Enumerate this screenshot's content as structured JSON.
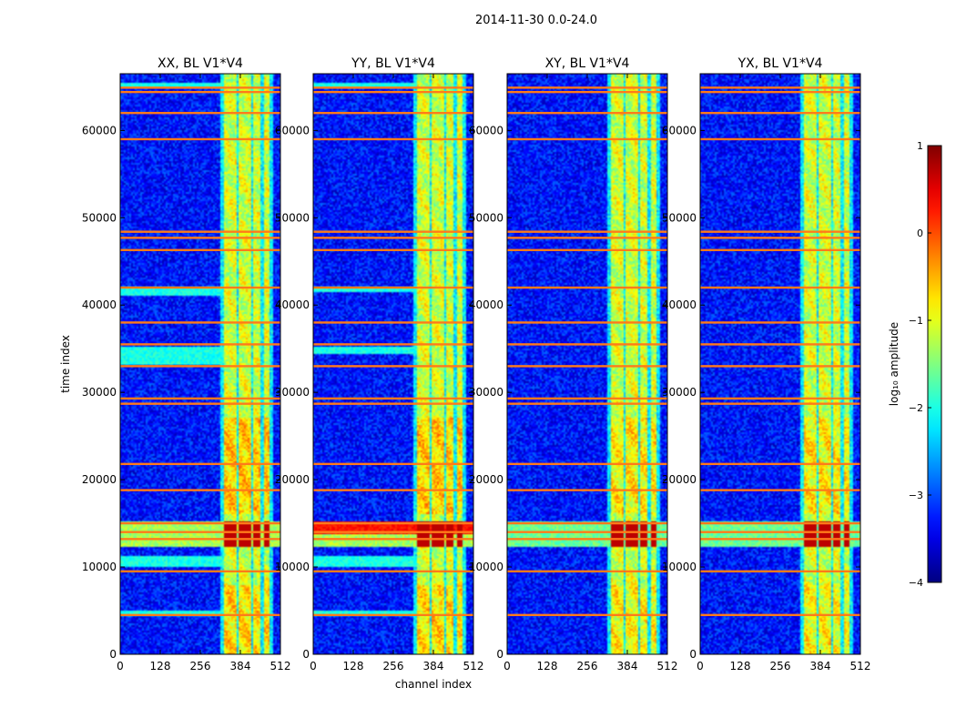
{
  "figure_title": "2014-11-30 0.0-24.0",
  "chart_data": {
    "type": "heatmap",
    "suptitle": "2014-11-30 0.0-24.0",
    "xlabel": "channel index",
    "ylabel": "time index",
    "xlim": [
      0,
      512
    ],
    "ylim": [
      0,
      66500
    ],
    "x_ticks": [
      0,
      128,
      256,
      384,
      512
    ],
    "x_tick_labels": [
      "0",
      "128",
      "256",
      "384",
      "512"
    ],
    "y_ticks": [
      0,
      10000,
      20000,
      30000,
      40000,
      50000,
      60000
    ],
    "y_tick_labels": [
      "0",
      "10000",
      "20000",
      "30000",
      "40000",
      "50000",
      "60000"
    ],
    "panels": [
      {
        "title": "XX, BL V1*V4",
        "flare_strength": 1.0,
        "left_bands": [
          [
            4300,
            5000
          ],
          [
            10000,
            11200
          ],
          [
            33200,
            35200
          ],
          [
            41000,
            42200
          ],
          [
            64800,
            65500
          ]
        ]
      },
      {
        "title": "YY, BL V1*V4",
        "flare_strength": 1.0,
        "left_bands": [
          [
            4300,
            5000
          ],
          [
            10000,
            11200
          ],
          [
            34500,
            35200
          ],
          [
            41500,
            42200
          ],
          [
            64800,
            65500
          ]
        ]
      },
      {
        "title": "XY, BL V1*V4",
        "flare_strength": 0.6,
        "left_bands": []
      },
      {
        "title": "YX, BL V1*V4",
        "flare_strength": 0.6,
        "left_bands": []
      }
    ],
    "rfi_channel_bands": [
      [
        332,
        372
      ],
      [
        380,
        416
      ],
      [
        422,
        450
      ],
      [
        458,
        478
      ]
    ],
    "rfi_flare_rows": [
      12200,
      15200
    ],
    "flagged_time_rows": [
      4500,
      9500,
      13200,
      14000,
      15000,
      18800,
      21800,
      28700,
      29300,
      33000,
      35500,
      38000,
      42000,
      46300,
      47700,
      48400,
      59000,
      62000,
      64400,
      64900
    ],
    "colorbar": {
      "label": "log₁₀ amplitude",
      "range": [
        -4,
        1
      ],
      "ticks": [
        1,
        0,
        -1,
        -2,
        -3,
        -4
      ],
      "tick_labels": [
        "1",
        "0",
        "−1",
        "−2",
        "−3",
        "−4"
      ],
      "colormap": "jet"
    }
  }
}
